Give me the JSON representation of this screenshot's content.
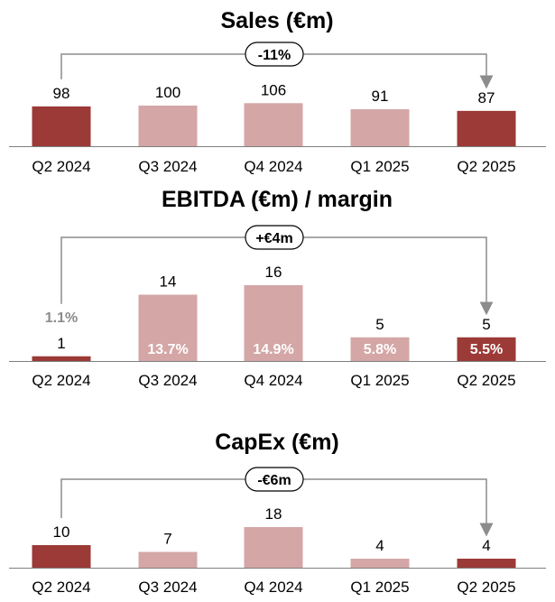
{
  "colors": {
    "highlight": "#9b3a36",
    "base": "#d4a6a6",
    "arrow": "#8c8c8c",
    "axis": "#7f7f7f"
  },
  "chart_data": [
    {
      "type": "bar",
      "title": "Sales (€m)",
      "categories": [
        "Q2 2024",
        "Q3 2024",
        "Q4 2024",
        "Q1 2025",
        "Q2 2025"
      ],
      "values": [
        98,
        100,
        106,
        91,
        87
      ],
      "highlighted": [
        true,
        false,
        false,
        false,
        true
      ],
      "change_label": "-11%"
    },
    {
      "type": "bar",
      "title": "EBITDA (€m) / margin",
      "categories": [
        "Q2 2024",
        "Q3 2024",
        "Q4 2024",
        "Q1 2025",
        "Q2 2025"
      ],
      "values": [
        1,
        14,
        16,
        5,
        5
      ],
      "margins": [
        "1.1%",
        "13.7%",
        "14.9%",
        "5.8%",
        "5.5%"
      ],
      "highlighted": [
        true,
        false,
        false,
        false,
        true
      ],
      "change_label": "+€4m"
    },
    {
      "type": "bar",
      "title": "CapEx (€m)",
      "categories": [
        "Q2 2024",
        "Q3 2024",
        "Q4 2024",
        "Q1 2025",
        "Q2 2025"
      ],
      "values": [
        10,
        7,
        18,
        4,
        4
      ],
      "highlighted": [
        true,
        false,
        false,
        false,
        true
      ],
      "change_label": "-€6m"
    }
  ]
}
